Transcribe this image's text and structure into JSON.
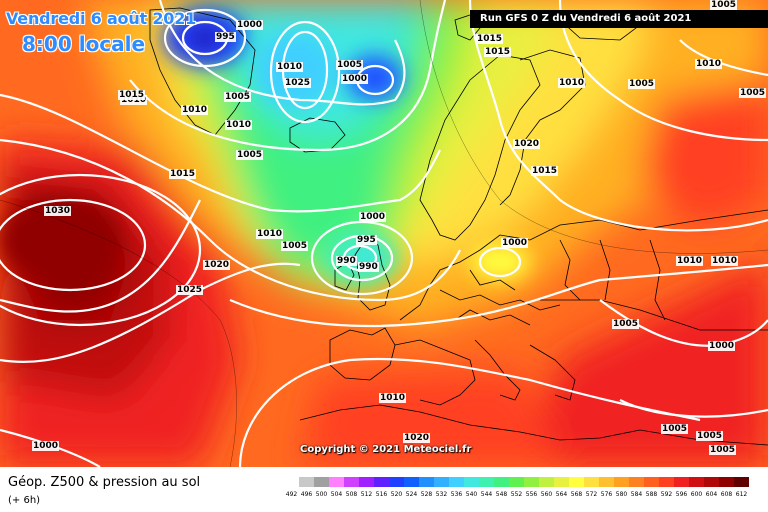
{
  "header": {
    "date_line": "Vendredi 6 août 2021",
    "time_line": "8:00 locale",
    "run_info": "Run GFS 0 Z du Vendredi 6 août 2021"
  },
  "copyright": "Copyright © 2021 Meteociel.fr",
  "legend": {
    "title": "Géop. Z500 & pression au sol",
    "subtitle": "(+ 6h)",
    "scale_values": [
      "492",
      "496",
      "500",
      "504",
      "508",
      "512",
      "516",
      "520",
      "524",
      "528",
      "532",
      "536",
      "540",
      "544",
      "548",
      "552",
      "556",
      "560",
      "564",
      "568",
      "572",
      "576",
      "580",
      "584",
      "588",
      "592",
      "596",
      "600",
      "604",
      "608",
      "612"
    ],
    "scale_colors": [
      "#ffffff",
      "#c8c8c8",
      "#a0a0a0",
      "#ff80ff",
      "#d040ff",
      "#a020ff",
      "#6020ff",
      "#2040ff",
      "#1060ff",
      "#2090ff",
      "#30b0ff",
      "#40d0ff",
      "#40e8e0",
      "#40f0b0",
      "#40f080",
      "#60f050",
      "#90f040",
      "#c0f040",
      "#e8f040",
      "#ffff40",
      "#ffe040",
      "#ffc030",
      "#ffa020",
      "#ff8020",
      "#ff6020",
      "#ff4020",
      "#f02020",
      "#d01010",
      "#b00808",
      "#900000",
      "#600000"
    ]
  },
  "isobar_labels": [
    {
      "text": "1000"
    },
    {
      "text": "995"
    },
    {
      "text": "1005"
    },
    {
      "text": "1010"
    },
    {
      "text": "1025"
    },
    {
      "text": "1005"
    },
    {
      "text": "1000"
    },
    {
      "text": "1010"
    },
    {
      "text": "1010"
    },
    {
      "text": "1010"
    },
    {
      "text": "1005"
    },
    {
      "text": "1015"
    },
    {
      "text": "1030"
    },
    {
      "text": "1010"
    },
    {
      "text": "1005"
    },
    {
      "text": "1000"
    },
    {
      "text": "995"
    },
    {
      "text": "990"
    },
    {
      "text": "990"
    },
    {
      "text": "1020"
    },
    {
      "text": "1025"
    },
    {
      "text": "1015"
    },
    {
      "text": "1015"
    },
    {
      "text": "1010"
    },
    {
      "text": "1005"
    },
    {
      "text": "1020"
    },
    {
      "text": "1015"
    },
    {
      "text": "1010"
    },
    {
      "text": "1005"
    },
    {
      "text": "1005"
    },
    {
      "text": "1000"
    },
    {
      "text": "1000"
    },
    {
      "text": "1010"
    },
    {
      "text": "1010"
    },
    {
      "text": "1005"
    },
    {
      "text": "1000"
    },
    {
      "text": "1010"
    },
    {
      "text": "1015"
    },
    {
      "text": "1020"
    },
    {
      "text": "1005"
    },
    {
      "text": "1005"
    },
    {
      "text": "1005"
    }
  ]
}
